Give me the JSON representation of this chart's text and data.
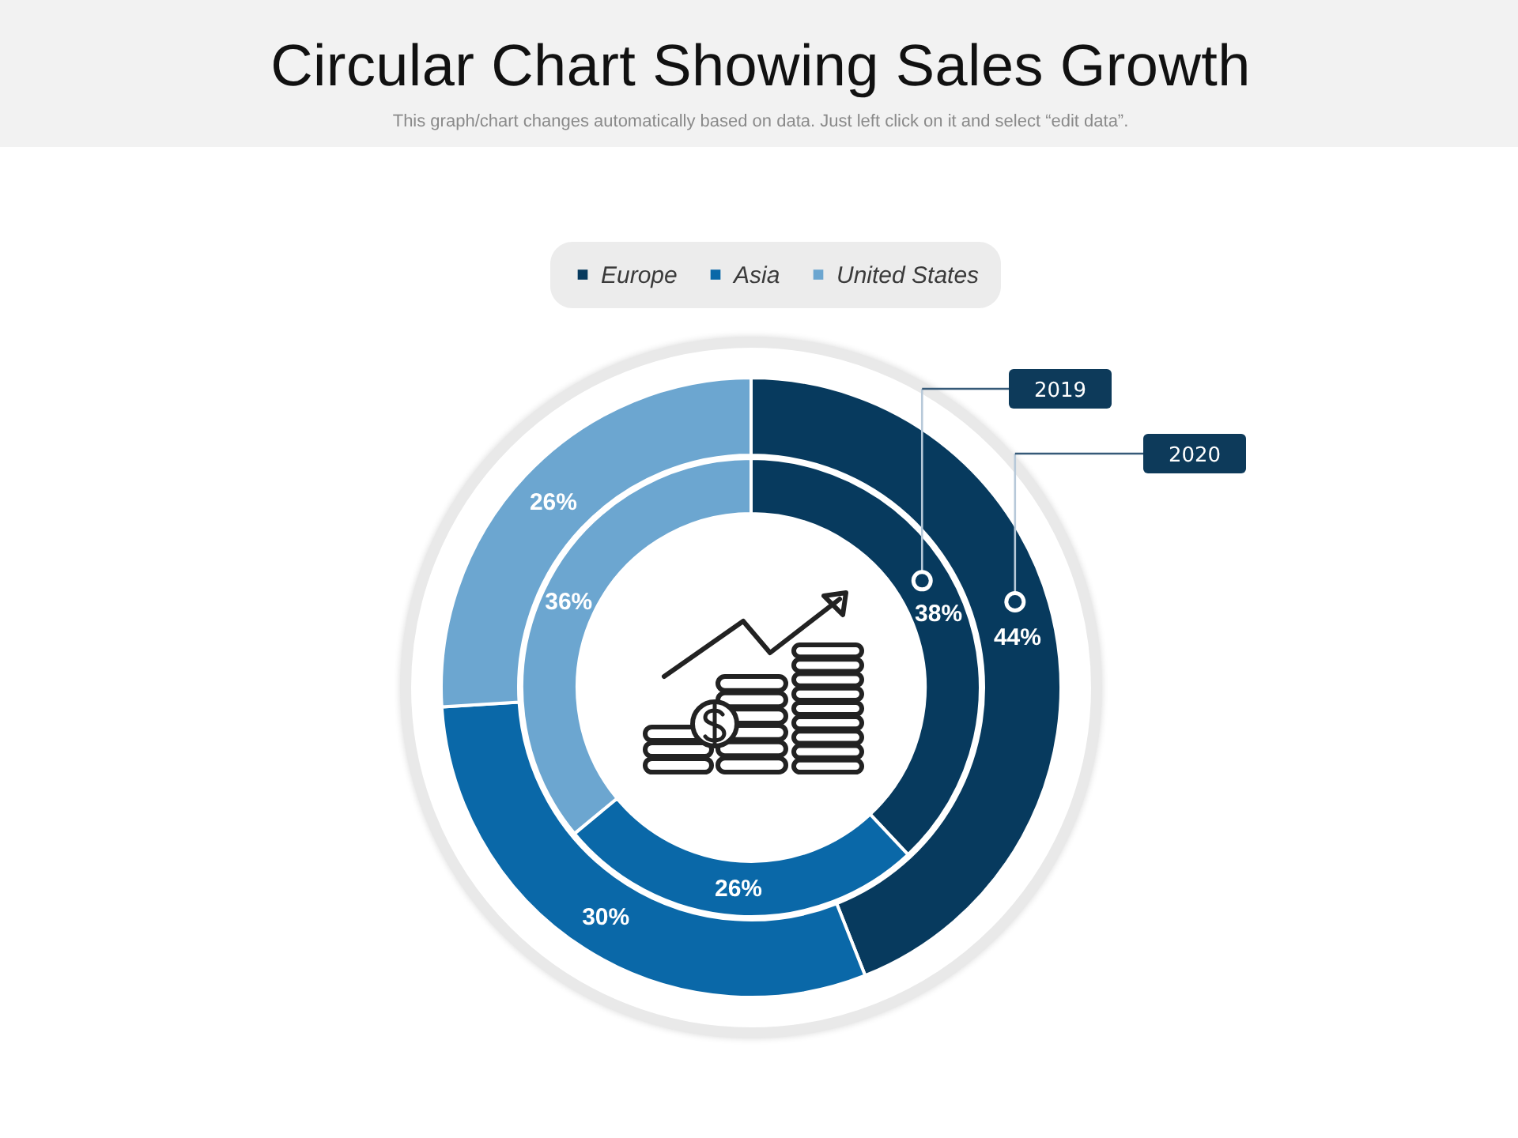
{
  "chart_data": {
    "type": "donut",
    "title": "Circular Chart Showing Sales Growth",
    "subtitle": "This graph/chart changes automatically based on data. Just left click on it and select “edit data”.",
    "categories": [
      "Europe",
      "Asia",
      "United States"
    ],
    "colors": [
      "#073a5e",
      "#0a68a8",
      "#6ca6d0"
    ],
    "series": [
      {
        "name": "2019",
        "values": [
          38,
          26,
          36
        ],
        "value_labels": [
          "38%",
          "26%",
          "36%"
        ]
      },
      {
        "name": "2020",
        "values": [
          44,
          30,
          26
        ],
        "value_labels": [
          "44%",
          "30%",
          "26%"
        ]
      }
    ],
    "legend": "top"
  }
}
